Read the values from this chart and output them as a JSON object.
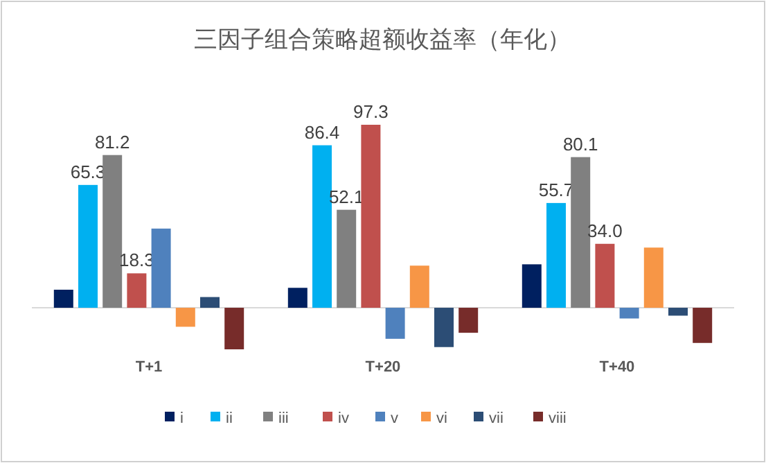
{
  "chart_data": {
    "type": "bar",
    "title": "三因子组合策略超额收益率（年化）",
    "categories": [
      "T+1",
      "T+20",
      "T+40"
    ],
    "legend": "bottom",
    "series": [
      {
        "name": "i",
        "color": "#002060",
        "values": [
          9.6,
          10.6,
          23.1
        ],
        "value_labels": [
          null,
          null,
          null
        ]
      },
      {
        "name": "ii",
        "color": "#00b0f0",
        "values": [
          65.3,
          86.4,
          55.7
        ],
        "value_labels": [
          "65.3",
          "86.4",
          "55.7"
        ]
      },
      {
        "name": "iii",
        "color": "#808080",
        "values": [
          81.2,
          52.1,
          80.1
        ],
        "value_labels": [
          "81.2",
          "52.1",
          "80.1"
        ]
      },
      {
        "name": "iv",
        "color": "#c0504d",
        "values": [
          18.3,
          97.3,
          34.0
        ],
        "value_labels": [
          "18.3",
          "97.3",
          "34.0"
        ]
      },
      {
        "name": "v",
        "color": "#4f81bd",
        "values": [
          42.1,
          -16.5,
          -5.7
        ],
        "value_labels": [
          null,
          null,
          null
        ]
      },
      {
        "name": "vi",
        "color": "#f79646",
        "values": [
          -10.1,
          22.4,
          32.0
        ],
        "value_labels": [
          null,
          null,
          null
        ]
      },
      {
        "name": "vii",
        "color": "#2c4d75",
        "values": [
          5.7,
          -20.9,
          -4.2
        ],
        "value_labels": [
          null,
          null,
          null
        ]
      },
      {
        "name": "viii",
        "color": "#772c2a",
        "values": [
          -22.1,
          -13.3,
          -18.7
        ],
        "value_labels": [
          null,
          null,
          null
        ]
      }
    ]
  }
}
